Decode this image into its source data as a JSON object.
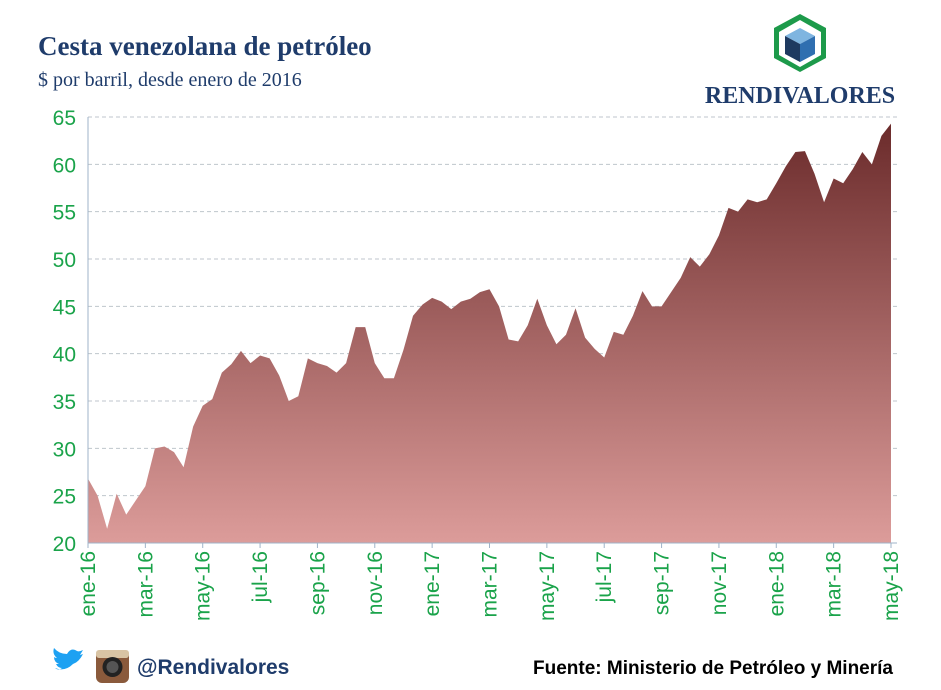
{
  "chart_data": {
    "type": "area",
    "title": "Cesta venezolana de petróleo",
    "subtitle": "$ por barril, desde enero de 2016",
    "brand": "RENDIVALORES",
    "handle": "@Rendivalores",
    "source": "Fuente: Ministerio de Petróleo y Minería",
    "categories": [
      "ene-16",
      null,
      null,
      null,
      null,
      null,
      "mar-16",
      null,
      null,
      null,
      null,
      null,
      "may-16",
      null,
      null,
      null,
      null,
      null,
      "jul-16",
      null,
      null,
      null,
      null,
      null,
      "sep-16",
      null,
      null,
      null,
      null,
      null,
      "nov-16",
      null,
      null,
      null,
      null,
      null,
      "ene-17",
      null,
      null,
      null,
      null,
      null,
      "mar-17",
      null,
      null,
      null,
      null,
      null,
      "may-17",
      null,
      null,
      null,
      null,
      null,
      "jul-17",
      null,
      null,
      null,
      null,
      null,
      "sep-17",
      null,
      null,
      null,
      null,
      null,
      "nov-17",
      null,
      null,
      null,
      null,
      null,
      "ene-18",
      null,
      null,
      null,
      null,
      null,
      "mar-18",
      null,
      null,
      null,
      null,
      null,
      "may-18"
    ],
    "values": [
      26.8,
      25.0,
      21.5,
      25.2,
      23.0,
      24.5,
      26.0,
      30.0,
      30.2,
      29.6,
      28.0,
      32.3,
      34.5,
      35.2,
      38.0,
      38.9,
      40.3,
      39.0,
      39.8,
      39.5,
      37.7,
      35.0,
      35.5,
      39.5,
      39.0,
      38.7,
      38.0,
      39.0,
      42.8,
      42.8,
      39.0,
      37.4,
      37.4,
      40.4,
      44.0,
      45.2,
      45.9,
      45.5,
      44.7,
      45.5,
      45.8,
      46.5,
      46.8,
      45.0,
      41.5,
      41.3,
      43.0,
      45.8,
      43.0,
      41.0,
      42.0,
      44.8,
      41.7,
      40.5,
      39.6,
      42.3,
      42.0,
      44.0,
      46.6,
      45.0,
      45.0,
      46.5,
      48.0,
      50.2,
      49.2,
      50.5,
      52.5,
      55.4,
      55.0,
      56.3,
      56.0,
      56.3,
      58.0,
      59.8,
      61.3,
      61.4,
      59.0,
      56.0,
      58.5,
      58.0,
      59.5,
      61.3,
      60.0,
      63.0,
      64.3
    ],
    "gradient": [
      "#6b2b2b",
      "#dc9c9a"
    ],
    "ylim": [
      20,
      65
    ],
    "yticks": [
      20,
      25,
      30,
      35,
      40,
      45,
      50,
      55,
      60,
      65
    ],
    "grid": true
  }
}
